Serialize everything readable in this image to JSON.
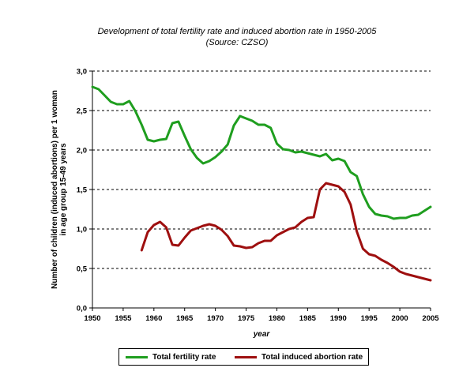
{
  "chart_data": {
    "type": "line",
    "title": "Development of total fertility rate and induced abortion rate in 1950-2005",
    "subtitle": "(Source: CZSO)",
    "xlabel": "year",
    "ylabel": "Number of children (induced abortions) per 1 woman in age group 15-49 years",
    "xlim": [
      1950,
      2005
    ],
    "ylim": [
      0,
      3
    ],
    "x_ticks": [
      "1950",
      "1955",
      "1960",
      "1965",
      "1970",
      "1975",
      "1980",
      "1985",
      "1990",
      "1995",
      "2000",
      "2005"
    ],
    "y_ticks": [
      "0,0",
      "0,5",
      "1,0",
      "1,5",
      "2,0",
      "2,5",
      "3,0"
    ],
    "grid": "horizontal dashed",
    "legend_position": "bottom",
    "series": [
      {
        "name": "Total fertility rate",
        "color": "#1f9e1f",
        "x": [
          1950,
          1951,
          1952,
          1953,
          1954,
          1955,
          1956,
          1957,
          1958,
          1959,
          1960,
          1961,
          1962,
          1963,
          1964,
          1965,
          1966,
          1967,
          1968,
          1969,
          1970,
          1971,
          1972,
          1973,
          1974,
          1975,
          1976,
          1977,
          1978,
          1979,
          1980,
          1981,
          1982,
          1983,
          1984,
          1985,
          1986,
          1987,
          1988,
          1989,
          1990,
          1991,
          1992,
          1993,
          1994,
          1995,
          1996,
          1997,
          1998,
          1999,
          2000,
          2001,
          2002,
          2003,
          2004,
          2005
        ],
        "values": [
          2.8,
          2.77,
          2.69,
          2.61,
          2.58,
          2.58,
          2.62,
          2.49,
          2.32,
          2.13,
          2.11,
          2.13,
          2.14,
          2.34,
          2.36,
          2.18,
          2.01,
          1.9,
          1.83,
          1.86,
          1.91,
          1.98,
          2.07,
          2.31,
          2.43,
          2.4,
          2.37,
          2.32,
          2.32,
          2.28,
          2.08,
          2.01,
          2.0,
          1.97,
          1.98,
          1.96,
          1.94,
          1.92,
          1.95,
          1.87,
          1.89,
          1.86,
          1.72,
          1.67,
          1.44,
          1.28,
          1.19,
          1.17,
          1.16,
          1.13,
          1.14,
          1.14,
          1.17,
          1.18,
          1.23,
          1.28
        ]
      },
      {
        "name": "Total induced abortion rate",
        "color": "#9e0f0f",
        "x": [
          1958,
          1959,
          1960,
          1961,
          1962,
          1963,
          1964,
          1965,
          1966,
          1967,
          1968,
          1969,
          1970,
          1971,
          1972,
          1973,
          1974,
          1975,
          1976,
          1977,
          1978,
          1979,
          1980,
          1981,
          1982,
          1983,
          1984,
          1985,
          1986,
          1987,
          1988,
          1989,
          1990,
          1991,
          1992,
          1993,
          1994,
          1995,
          1996,
          1997,
          1998,
          1999,
          2000,
          2001,
          2002,
          2003,
          2004,
          2005
        ],
        "values": [
          0.73,
          0.96,
          1.05,
          1.09,
          1.02,
          0.8,
          0.79,
          0.89,
          0.98,
          1.01,
          1.04,
          1.06,
          1.04,
          0.99,
          0.91,
          0.79,
          0.78,
          0.76,
          0.77,
          0.82,
          0.85,
          0.85,
          0.92,
          0.96,
          1.0,
          1.02,
          1.09,
          1.14,
          1.15,
          1.5,
          1.58,
          1.56,
          1.54,
          1.47,
          1.31,
          0.97,
          0.75,
          0.68,
          0.66,
          0.61,
          0.57,
          0.52,
          0.46,
          0.43,
          0.41,
          0.39,
          0.37,
          0.35
        ]
      }
    ]
  }
}
